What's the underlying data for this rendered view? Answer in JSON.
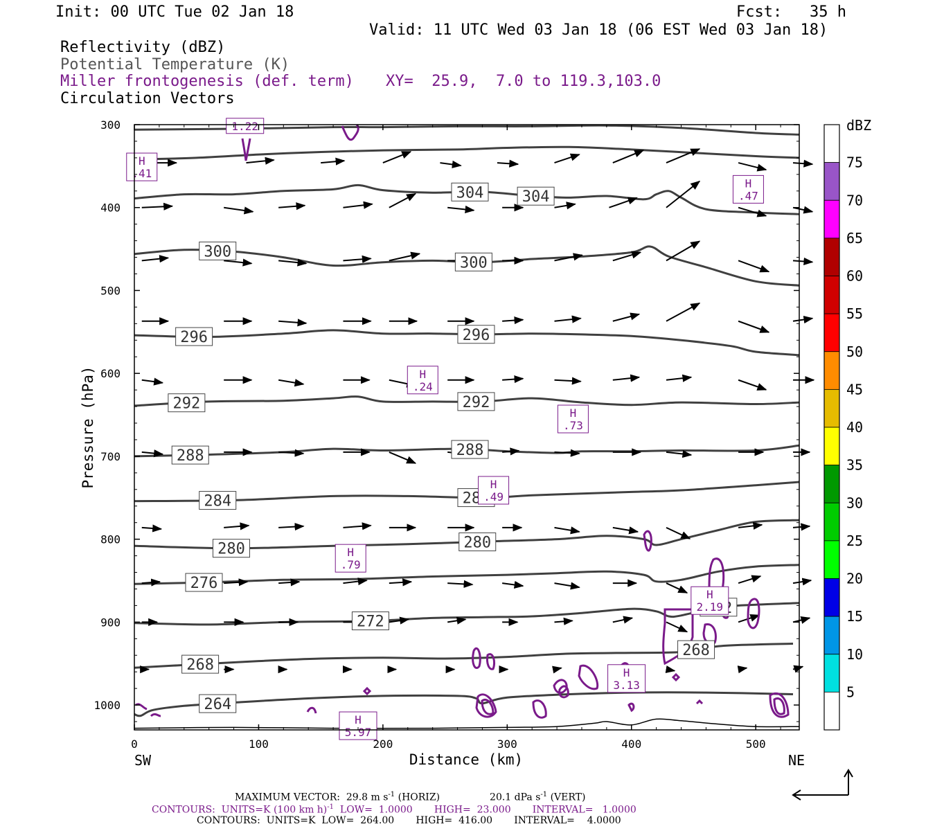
{
  "header": {
    "init": "Init: 00 UTC Tue 02 Jan 18",
    "fcst": "Fcst:   35 h",
    "valid": "Valid: 11 UTC Wed 03 Jan 18 (06 EST Wed 03 Jan 18)",
    "field1": "Reflectivity (dBZ)",
    "field2": "Potential Temperature (K)",
    "field3": "Miller frontogenesis (def. term)",
    "xy": "XY=  25.9,  7.0 to 119.3,103.0",
    "field4": "Circulation Vectors"
  },
  "axes": {
    "xlabel": "Distance (km)",
    "ylabel": "Pressure (hPa)",
    "x_left_label": "SW",
    "x_right_label": "NE",
    "x_ticks": [
      "0",
      "100",
      "200",
      "300",
      "400",
      "500"
    ],
    "y_ticks": [
      "300",
      "400",
      "500",
      "600",
      "700",
      "800",
      "900",
      "1000"
    ]
  },
  "colorbar": {
    "title": "dBZ",
    "labels": [
      "5",
      "10",
      "15",
      "20",
      "25",
      "30",
      "35",
      "40",
      "45",
      "50",
      "55",
      "60",
      "65",
      "70",
      "75"
    ],
    "colors": [
      "#ffffff",
      "#00e0e0",
      "#0096e6",
      "#0000e6",
      "#00ff00",
      "#00cc00",
      "#009900",
      "#ffff00",
      "#e6bc00",
      "#ff8c00",
      "#ff0000",
      "#d00000",
      "#b00000",
      "#ff00ff",
      "#9955c8",
      "#ffffff"
    ]
  },
  "footer": {
    "max_vector": "MAXIMUM VECTOR:  29.8 m s",
    "max_vector_sup": "-1",
    "max_vector_h": " (HORIZ)",
    "max_vector_v": "20.1 dPa s",
    "max_vector_v_sup": "-1",
    "max_vector_v2": " (VERT)",
    "contours1a": "CONTOURS:  UNITS=K (100 km h)",
    "contours1_sup": "-1",
    "contours1b": "  LOW=  1.0000       HIGH=  23.000       INTERVAL=   1.0000",
    "contours2": "CONTOURS:  UNITS=K  LOW=  264.00       HIGH=  416.00       INTERVAL=    4.0000"
  },
  "chart_data": {
    "type": "cross-section",
    "x_range": [
      0,
      535
    ],
    "y_range_hpa": [
      300,
      1030
    ],
    "y_scale": "linear",
    "theta_contours": [
      {
        "label": "264",
        "label_x": 67,
        "pts": [
          [
            0,
            1011
          ],
          [
            5,
            1013
          ],
          [
            15,
            1006
          ],
          [
            40,
            1001
          ],
          [
            80,
            997
          ],
          [
            140,
            992
          ],
          [
            200,
            989
          ],
          [
            260,
            989
          ],
          [
            275,
            992
          ],
          [
            280,
            998
          ],
          [
            300,
            991
          ],
          [
            350,
            987
          ],
          [
            400,
            985
          ],
          [
            460,
            985
          ],
          [
            530,
            987
          ]
        ]
      },
      {
        "label": "268",
        "label_x": 53,
        "pts": [
          [
            0,
            955
          ],
          [
            50,
            951
          ],
          [
            100,
            947
          ],
          [
            150,
            944
          ],
          [
            200,
            943
          ],
          [
            250,
            944
          ],
          [
            300,
            942
          ],
          [
            350,
            938
          ],
          [
            400,
            937
          ],
          [
            440,
            936
          ],
          [
            470,
            929
          ],
          [
            500,
            927
          ],
          [
            530,
            926
          ]
        ]
      },
      {
        "label": "268",
        "label_x": 452,
        "pts": []
      },
      {
        "label": "272",
        "label_x": 190,
        "pts": [
          [
            0,
            901
          ],
          [
            60,
            903
          ],
          [
            120,
            900
          ],
          [
            180,
            899
          ],
          [
            200,
            898
          ],
          [
            240,
            895
          ],
          [
            280,
            894
          ],
          [
            320,
            893
          ],
          [
            360,
            889
          ],
          [
            400,
            884
          ],
          [
            420,
            887
          ],
          [
            430,
            893
          ],
          [
            440,
            892
          ],
          [
            470,
            882
          ],
          [
            500,
            879
          ],
          [
            535,
            877
          ]
        ]
      },
      {
        "label": "272",
        "label_x": 470,
        "pts": []
      },
      {
        "label": "276",
        "label_x": 56,
        "pts": [
          [
            0,
            854
          ],
          [
            60,
            852
          ],
          [
            120,
            849
          ],
          [
            180,
            848
          ],
          [
            240,
            845
          ],
          [
            300,
            843
          ],
          [
            340,
            841
          ],
          [
            380,
            839
          ],
          [
            410,
            843
          ],
          [
            420,
            851
          ],
          [
            440,
            849
          ],
          [
            470,
            839
          ],
          [
            500,
            833
          ],
          [
            535,
            831
          ]
        ]
      },
      {
        "label": "280",
        "label_x": 78,
        "pts": [
          [
            0,
            808
          ],
          [
            80,
            811
          ],
          [
            160,
            808
          ],
          [
            220,
            806
          ],
          [
            280,
            803
          ],
          [
            340,
            800
          ],
          [
            380,
            796
          ],
          [
            410,
            800
          ],
          [
            420,
            807
          ],
          [
            440,
            800
          ],
          [
            470,
            789
          ],
          [
            500,
            779
          ],
          [
            535,
            777
          ]
        ]
      },
      {
        "label": "280",
        "label_x": 276,
        "pts": []
      },
      {
        "label": "284",
        "label_x": 67,
        "pts": [
          [
            0,
            754
          ],
          [
            80,
            753
          ],
          [
            160,
            748
          ],
          [
            220,
            748
          ],
          [
            280,
            750
          ],
          [
            320,
            747
          ],
          [
            360,
            745
          ],
          [
            400,
            743
          ],
          [
            440,
            741
          ],
          [
            500,
            735
          ],
          [
            535,
            731
          ]
        ]
      },
      {
        "label": "284",
        "label_x": 275,
        "pts": []
      },
      {
        "label": "288",
        "label_x": 45,
        "pts": [
          [
            0,
            700
          ],
          [
            60,
            698
          ],
          [
            120,
            695
          ],
          [
            160,
            691
          ],
          [
            200,
            693
          ],
          [
            260,
            691
          ],
          [
            300,
            694
          ],
          [
            340,
            696
          ],
          [
            360,
            694
          ],
          [
            400,
            694
          ],
          [
            440,
            693
          ],
          [
            500,
            693
          ],
          [
            535,
            687
          ]
        ]
      },
      {
        "label": "288",
        "label_x": 270,
        "pts": []
      },
      {
        "label": "292",
        "label_x": 42,
        "pts": [
          [
            0,
            639
          ],
          [
            60,
            634
          ],
          [
            120,
            633
          ],
          [
            160,
            630
          ],
          [
            180,
            628
          ],
          [
            200,
            634
          ],
          [
            240,
            634
          ],
          [
            280,
            634
          ],
          [
            320,
            630
          ],
          [
            360,
            635
          ],
          [
            400,
            638
          ],
          [
            440,
            635
          ],
          [
            500,
            637
          ],
          [
            535,
            635
          ]
        ]
      },
      {
        "label": "292",
        "label_x": 275,
        "pts": []
      },
      {
        "label": "296",
        "label_x": 48,
        "pts": [
          [
            0,
            554
          ],
          [
            60,
            556
          ],
          [
            120,
            552
          ],
          [
            160,
            548
          ],
          [
            200,
            552
          ],
          [
            240,
            552
          ],
          [
            280,
            553
          ],
          [
            320,
            552
          ],
          [
            360,
            553
          ],
          [
            400,
            555
          ],
          [
            440,
            560
          ],
          [
            480,
            567
          ],
          [
            500,
            574
          ],
          [
            535,
            578
          ]
        ]
      },
      {
        "label": "296",
        "label_x": 275,
        "pts": []
      },
      {
        "label": "300",
        "label_x": 67,
        "pts": [
          [
            0,
            456
          ],
          [
            40,
            451
          ],
          [
            80,
            453
          ],
          [
            120,
            460
          ],
          [
            160,
            470
          ],
          [
            200,
            466
          ],
          [
            240,
            464
          ],
          [
            280,
            466
          ],
          [
            320,
            462
          ],
          [
            360,
            459
          ],
          [
            400,
            454
          ],
          [
            415,
            447
          ],
          [
            430,
            459
          ],
          [
            460,
            472
          ],
          [
            500,
            489
          ],
          [
            535,
            494
          ]
        ]
      },
      {
        "label": "300",
        "label_x": 273,
        "pts": []
      },
      {
        "label": "304",
        "label_x": 270,
        "pts": [
          [
            0,
            389
          ],
          [
            40,
            384
          ],
          [
            80,
            384
          ],
          [
            120,
            380
          ],
          [
            160,
            378
          ],
          [
            180,
            373
          ],
          [
            200,
            379
          ],
          [
            240,
            382
          ],
          [
            280,
            381
          ],
          [
            320,
            386
          ],
          [
            350,
            388
          ],
          [
            380,
            386
          ],
          [
            410,
            390
          ],
          [
            420,
            384
          ],
          [
            430,
            380
          ],
          [
            440,
            388
          ],
          [
            460,
            402
          ],
          [
            500,
            406
          ],
          [
            535,
            408
          ]
        ]
      },
      {
        "label": "304",
        "label_x": 323,
        "pts": []
      },
      {
        "label": "",
        "pts": [
          [
            0,
            342
          ],
          [
            50,
            340
          ],
          [
            100,
            336
          ],
          [
            150,
            333
          ],
          [
            200,
            331
          ],
          [
            260,
            330
          ],
          [
            300,
            328
          ],
          [
            350,
            327
          ],
          [
            400,
            330
          ],
          [
            450,
            334
          ],
          [
            500,
            338
          ],
          [
            535,
            340
          ]
        ]
      },
      {
        "label": "",
        "pts": [
          [
            0,
            306
          ],
          [
            80,
            305
          ],
          [
            160,
            303
          ],
          [
            200,
            303
          ],
          [
            260,
            302
          ],
          [
            320,
            302
          ],
          [
            380,
            301
          ],
          [
            440,
            304
          ],
          [
            500,
            310
          ],
          [
            535,
            312
          ]
        ]
      }
    ],
    "theta_label_values": [
      "264",
      "268",
      "268",
      "272",
      "272",
      "276",
      "280",
      "280",
      "284",
      "284",
      "288",
      "288",
      "292",
      "292",
      "296",
      "296",
      "300",
      "300",
      "304",
      "304"
    ],
    "frontogenesis_maxima": [
      {
        "label": "H",
        "value": "1.22",
        "x": 89,
        "p": 309
      },
      {
        "label": "H",
        "value": ".41",
        "x": 6,
        "p": 351
      },
      {
        "label": "H",
        "value": ".47",
        "x": 494,
        "p": 378
      },
      {
        "label": "H",
        "value": ".24",
        "x": 232,
        "p": 608
      },
      {
        "label": "H",
        "value": ".73",
        "x": 353,
        "p": 655
      },
      {
        "label": "H",
        "value": ".49",
        "x": 289,
        "p": 741
      },
      {
        "label": "H",
        "value": ".79",
        "x": 174,
        "p": 823
      },
      {
        "label": "H",
        "value": "2.19",
        "x": 463,
        "p": 874
      },
      {
        "label": "H",
        "value": "3.13",
        "x": 396,
        "p": 968
      },
      {
        "label": "H",
        "value": "5.97",
        "x": 180,
        "p": 1025
      }
    ]
  }
}
